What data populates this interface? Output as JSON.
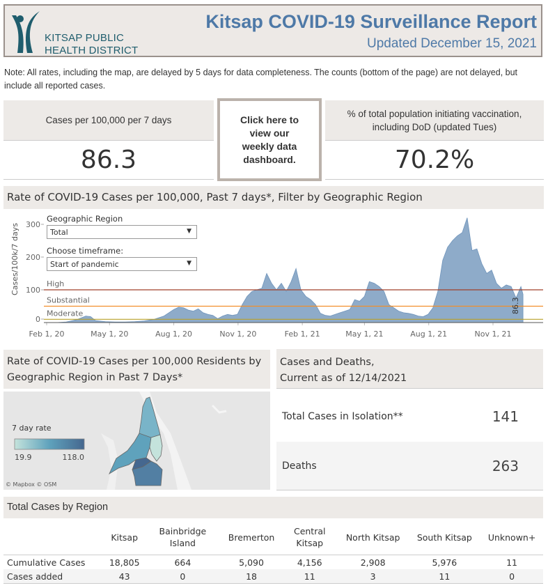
{
  "header": {
    "org_line1": "KITSAP PUBLIC",
    "org_line2": "HEALTH DISTRICT",
    "title": "Kitsap COVID-19 Surveillance Report",
    "updated": "Updated December 15, 2021",
    "brand_color": "#4e79a7",
    "logo_color": "#1f5d6d"
  },
  "note": "Note:  All rates, including the map, are delayed by 5 days for data completeness. The counts (bottom of the page) are not delayed, but include all reported cases.",
  "kpis": {
    "cases_rate": {
      "label": "Cases per 100,000 per 7 days",
      "value": "86.3"
    },
    "dashboard_link": "Click here to view our weekly data dashboard.",
    "vaccination": {
      "label": "% of total population initiating vaccination, including DoD (updated Tues)",
      "value": "70.2%"
    }
  },
  "rate_chart": {
    "heading": "Rate of COVID-19 Cases per 100,000, Past 7 days*, Filter by Geographic Region",
    "filters": {
      "region_label": "Geographic Region",
      "region_value": "Total",
      "timeframe_label": "Choose timeframe:",
      "timeframe_value": "Start of pandemic"
    }
  },
  "chart_data": {
    "type": "area",
    "title": "Rate of COVID-19 Cases per 100,000, Past 7 days*, Filter by Geographic Region",
    "xlabel": "",
    "ylabel": "Cases/100k/7 days",
    "ylim": [
      -10,
      320
    ],
    "yticks": [
      0,
      100,
      200,
      300
    ],
    "xtick_labels": [
      "Feb 1, 20",
      "May 1, 20",
      "Aug 1, 20",
      "Nov 1, 20",
      "Feb 1, 21",
      "May 1, 21",
      "Aug 1, 21",
      "Nov 1, 21"
    ],
    "xtick_days": [
      0,
      90,
      182,
      274,
      366,
      455,
      547,
      639
    ],
    "grid": false,
    "reference_lines": [
      {
        "label": "High",
        "value": 100,
        "color": "#a0402a"
      },
      {
        "label": "Substantial",
        "value": 50,
        "color": "#f28e2b"
      },
      {
        "label": "Moderate",
        "value": 10,
        "color": "#b8a02a"
      }
    ],
    "end_label": "86.3",
    "series": [
      {
        "name": "Total",
        "color": "#8eabc9",
        "x_days": [
          0,
          14,
          28,
          42,
          56,
          63,
          70,
          84,
          98,
          112,
          126,
          140,
          154,
          168,
          175,
          182,
          189,
          196,
          203,
          210,
          217,
          224,
          231,
          238,
          245,
          252,
          259,
          266,
          273,
          280,
          287,
          294,
          301,
          308,
          315,
          322,
          329,
          336,
          343,
          350,
          357,
          364,
          371,
          378,
          385,
          392,
          399,
          406,
          413,
          420,
          427,
          434,
          441,
          448,
          455,
          462,
          469,
          476,
          483,
          490,
          497,
          504,
          511,
          518,
          525,
          532,
          539,
          546,
          553,
          560,
          567,
          574,
          581,
          588,
          595,
          602,
          609,
          616,
          623,
          630,
          637,
          644,
          651,
          658,
          665,
          672,
          679,
          682
        ],
        "values": [
          0,
          0,
          2,
          8,
          20,
          18,
          6,
          3,
          2,
          2,
          3,
          5,
          10,
          20,
          30,
          40,
          47,
          45,
          38,
          35,
          42,
          30,
          25,
          22,
          12,
          20,
          25,
          22,
          25,
          55,
          80,
          95,
          100,
          105,
          150,
          120,
          100,
          120,
          95,
          125,
          165,
          100,
          80,
          70,
          55,
          28,
          22,
          20,
          25,
          30,
          35,
          40,
          70,
          65,
          80,
          125,
          120,
          110,
          95,
          55,
          45,
          35,
          30,
          28,
          25,
          20,
          18,
          25,
          45,
          95,
          190,
          230,
          250,
          265,
          275,
          320,
          220,
          225,
          180,
          150,
          160,
          120,
          105,
          115,
          110,
          75,
          110,
          86.3
        ]
      }
    ]
  },
  "map_panel": {
    "heading": "Rate of COVID-19 Cases per 100,000 Residents by Geographic Region in Past 7 Days*",
    "legend_title": "7 day rate",
    "legend_min": "19.9",
    "legend_max": "118.0",
    "legend_color_low": "#c4e3dc",
    "legend_color_high": "#45678f",
    "attribution": "© Mapbox  © OSM"
  },
  "cases_deaths": {
    "heading_line1": "Cases and Deaths,",
    "heading_line2": "Current as of 12/14/2021",
    "rows": [
      {
        "label": "Total Cases in Isolation**",
        "value": "141"
      },
      {
        "label": "Deaths",
        "value": "263"
      }
    ]
  },
  "region_table": {
    "heading": "Total Cases by Region",
    "columns": [
      "Kitsap",
      "Bainbridge Island",
      "Bremerton",
      "Central Kitsap",
      "North Kitsap",
      "South Kitsap",
      "Unknown+"
    ],
    "rows": [
      {
        "label": "Cumulative Cases",
        "values": [
          "18,805",
          "664",
          "5,090",
          "4,156",
          "2,908",
          "5,976",
          "11"
        ]
      },
      {
        "label": "Cases added",
        "values": [
          "43",
          "0",
          "18",
          "11",
          "3",
          "11",
          "0"
        ]
      }
    ]
  }
}
